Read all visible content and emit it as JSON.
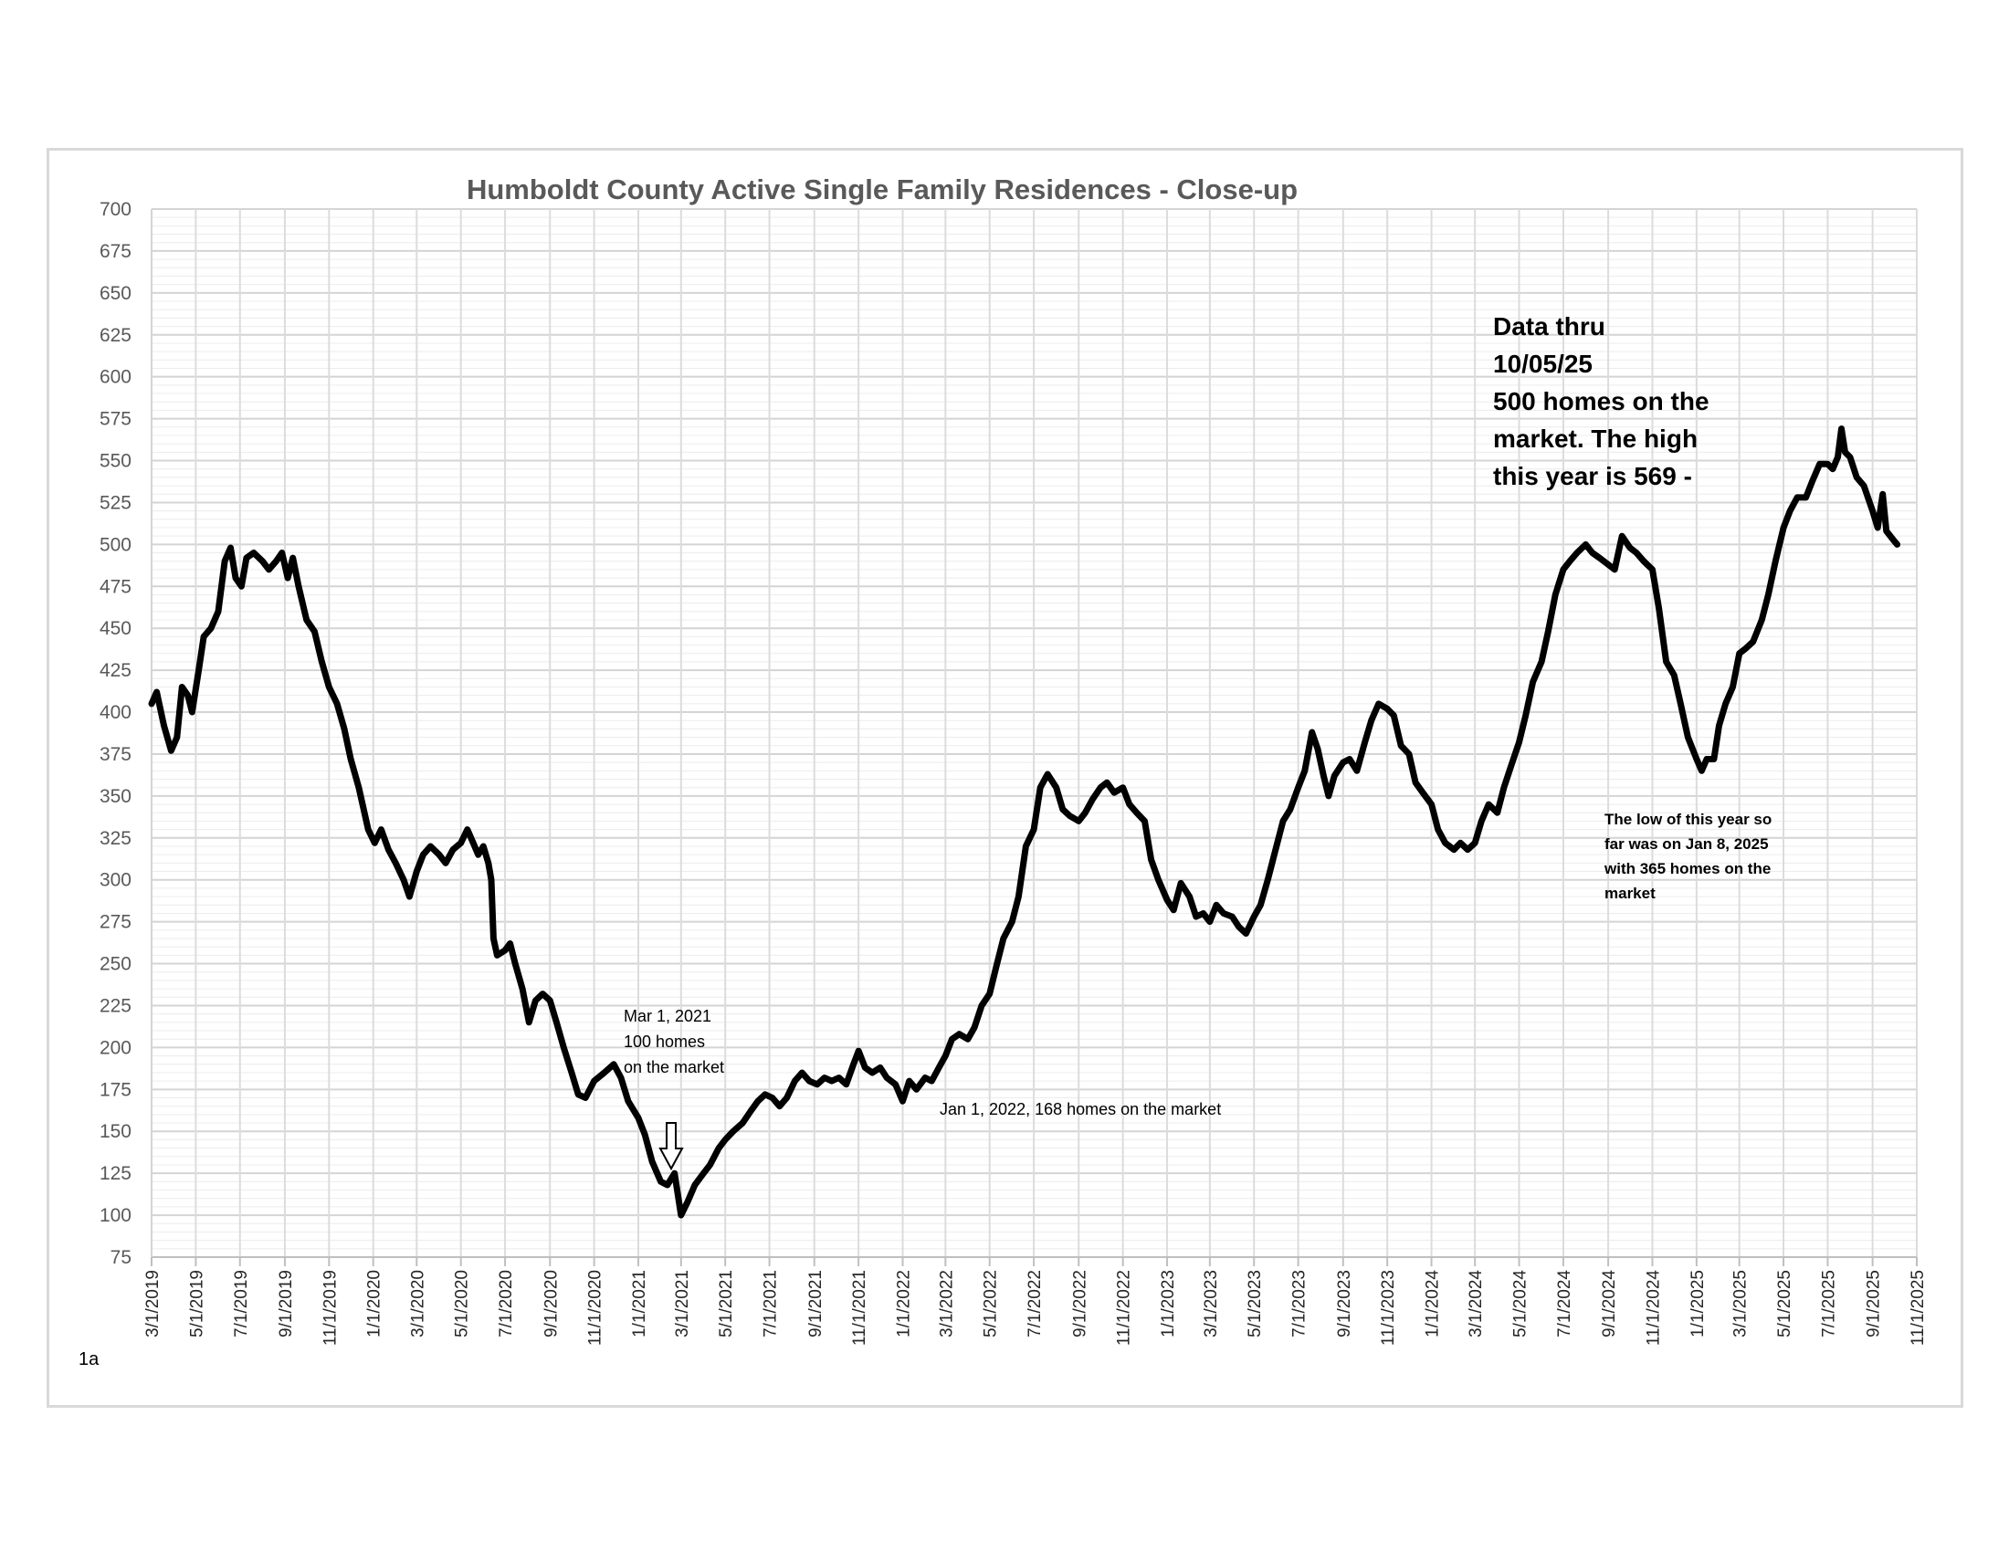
{
  "page_label": "1a",
  "chart_data": {
    "type": "line",
    "title": "Humboldt County Active Single Family Residences - Close-up",
    "xlabel": "",
    "ylabel": "",
    "ylim": [
      75,
      700
    ],
    "yticks": [
      75,
      100,
      125,
      150,
      175,
      200,
      225,
      250,
      275,
      300,
      325,
      350,
      375,
      400,
      425,
      450,
      475,
      500,
      525,
      550,
      575,
      600,
      625,
      650,
      675,
      700
    ],
    "xlim": [
      "3/1/2019",
      "11/1/2025"
    ],
    "xticks": [
      "3/1/2019",
      "5/1/2019",
      "7/1/2019",
      "9/1/2019",
      "11/1/2019",
      "1/1/2020",
      "3/1/2020",
      "5/1/2020",
      "7/1/2020",
      "9/1/2020",
      "11/1/2020",
      "1/1/2021",
      "3/1/2021",
      "5/1/2021",
      "7/1/2021",
      "9/1/2021",
      "11/1/2021",
      "1/1/2022",
      "3/1/2022",
      "5/1/2022",
      "7/1/2022",
      "9/1/2022",
      "11/1/2022",
      "1/1/2023",
      "3/1/2023",
      "5/1/2023",
      "7/1/2023",
      "9/1/2023",
      "11/1/2023",
      "1/1/2024",
      "3/1/2024",
      "5/1/2024",
      "7/1/2024",
      "9/1/2024",
      "11/1/2024",
      "1/1/2025",
      "3/1/2025",
      "5/1/2025",
      "7/1/2025",
      "9/1/2025",
      "11/1/2025"
    ],
    "grid": true,
    "series": [
      {
        "color": "#000000",
        "points": [
          [
            "2019-03-01",
            405
          ],
          [
            "2019-03-08",
            412
          ],
          [
            "2019-03-18",
            392
          ],
          [
            "2019-03-28",
            377
          ],
          [
            "2019-04-05",
            385
          ],
          [
            "2019-04-12",
            415
          ],
          [
            "2019-04-20",
            410
          ],
          [
            "2019-04-26",
            400
          ],
          [
            "2019-05-05",
            425
          ],
          [
            "2019-05-12",
            445
          ],
          [
            "2019-05-22",
            450
          ],
          [
            "2019-06-01",
            460
          ],
          [
            "2019-06-10",
            490
          ],
          [
            "2019-06-18",
            498
          ],
          [
            "2019-06-25",
            480
          ],
          [
            "2019-07-03",
            475
          ],
          [
            "2019-07-10",
            492
          ],
          [
            "2019-07-20",
            495
          ],
          [
            "2019-08-01",
            490
          ],
          [
            "2019-08-10",
            485
          ],
          [
            "2019-08-20",
            490
          ],
          [
            "2019-08-28",
            495
          ],
          [
            "2019-09-05",
            480
          ],
          [
            "2019-09-12",
            492
          ],
          [
            "2019-09-20",
            475
          ],
          [
            "2019-10-01",
            455
          ],
          [
            "2019-10-12",
            448
          ],
          [
            "2019-10-22",
            430
          ],
          [
            "2019-11-01",
            415
          ],
          [
            "2019-11-12",
            405
          ],
          [
            "2019-11-22",
            390
          ],
          [
            "2019-12-01",
            372
          ],
          [
            "2019-12-12",
            355
          ],
          [
            "2019-12-25",
            330
          ],
          [
            "2020-01-03",
            322
          ],
          [
            "2020-01-12",
            330
          ],
          [
            "2020-01-22",
            318
          ],
          [
            "2020-02-01",
            310
          ],
          [
            "2020-02-12",
            300
          ],
          [
            "2020-02-20",
            290
          ],
          [
            "2020-03-01",
            305
          ],
          [
            "2020-03-10",
            315
          ],
          [
            "2020-03-20",
            320
          ],
          [
            "2020-04-01",
            315
          ],
          [
            "2020-04-10",
            310
          ],
          [
            "2020-04-20",
            318
          ],
          [
            "2020-05-01",
            322
          ],
          [
            "2020-05-10",
            330
          ],
          [
            "2020-05-18",
            322
          ],
          [
            "2020-05-25",
            315
          ],
          [
            "2020-06-01",
            320
          ],
          [
            "2020-06-08",
            310
          ],
          [
            "2020-06-12",
            300
          ],
          [
            "2020-06-15",
            265
          ],
          [
            "2020-06-20",
            255
          ],
          [
            "2020-07-01",
            258
          ],
          [
            "2020-07-08",
            262
          ],
          [
            "2020-07-15",
            250
          ],
          [
            "2020-07-25",
            235
          ],
          [
            "2020-08-03",
            215
          ],
          [
            "2020-08-12",
            228
          ],
          [
            "2020-08-22",
            232
          ],
          [
            "2020-09-01",
            228
          ],
          [
            "2020-09-10",
            215
          ],
          [
            "2020-09-20",
            200
          ],
          [
            "2020-10-01",
            185
          ],
          [
            "2020-10-10",
            172
          ],
          [
            "2020-10-20",
            170
          ],
          [
            "2020-11-01",
            180
          ],
          [
            "2020-11-15",
            185
          ],
          [
            "2020-11-28",
            190
          ],
          [
            "2020-12-08",
            182
          ],
          [
            "2020-12-18",
            168
          ],
          [
            "2021-01-01",
            158
          ],
          [
            "2021-01-10",
            148
          ],
          [
            "2021-01-20",
            132
          ],
          [
            "2021-02-01",
            120
          ],
          [
            "2021-02-10",
            118
          ],
          [
            "2021-02-20",
            125
          ],
          [
            "2021-03-01",
            100
          ],
          [
            "2021-03-10",
            108
          ],
          [
            "2021-03-20",
            118
          ],
          [
            "2021-04-01",
            125
          ],
          [
            "2021-04-10",
            130
          ],
          [
            "2021-04-22",
            140
          ],
          [
            "2021-05-01",
            145
          ],
          [
            "2021-05-12",
            150
          ],
          [
            "2021-05-25",
            155
          ],
          [
            "2021-06-05",
            162
          ],
          [
            "2021-06-15",
            168
          ],
          [
            "2021-06-25",
            172
          ],
          [
            "2021-07-05",
            170
          ],
          [
            "2021-07-15",
            165
          ],
          [
            "2021-07-25",
            170
          ],
          [
            "2021-08-05",
            180
          ],
          [
            "2021-08-15",
            185
          ],
          [
            "2021-08-25",
            180
          ],
          [
            "2021-09-05",
            178
          ],
          [
            "2021-09-15",
            182
          ],
          [
            "2021-09-25",
            180
          ],
          [
            "2021-10-05",
            182
          ],
          [
            "2021-10-15",
            178
          ],
          [
            "2021-10-25",
            190
          ],
          [
            "2021-11-01",
            198
          ],
          [
            "2021-11-10",
            188
          ],
          [
            "2021-11-20",
            185
          ],
          [
            "2021-12-01",
            188
          ],
          [
            "2021-12-10",
            182
          ],
          [
            "2021-12-22",
            178
          ],
          [
            "2022-01-01",
            168
          ],
          [
            "2022-01-10",
            180
          ],
          [
            "2022-01-20",
            175
          ],
          [
            "2022-02-01",
            182
          ],
          [
            "2022-02-10",
            180
          ],
          [
            "2022-02-20",
            188
          ],
          [
            "2022-03-01",
            195
          ],
          [
            "2022-03-10",
            205
          ],
          [
            "2022-03-20",
            208
          ],
          [
            "2022-04-01",
            205
          ],
          [
            "2022-04-10",
            212
          ],
          [
            "2022-04-20",
            225
          ],
          [
            "2022-05-01",
            232
          ],
          [
            "2022-05-10",
            248
          ],
          [
            "2022-05-20",
            265
          ],
          [
            "2022-06-01",
            275
          ],
          [
            "2022-06-10",
            290
          ],
          [
            "2022-06-20",
            320
          ],
          [
            "2022-07-01",
            330
          ],
          [
            "2022-07-10",
            355
          ],
          [
            "2022-07-20",
            363
          ],
          [
            "2022-08-01",
            355
          ],
          [
            "2022-08-10",
            342
          ],
          [
            "2022-08-20",
            338
          ],
          [
            "2022-09-01",
            335
          ],
          [
            "2022-09-10",
            340
          ],
          [
            "2022-09-20",
            348
          ],
          [
            "2022-10-01",
            355
          ],
          [
            "2022-10-10",
            358
          ],
          [
            "2022-10-20",
            352
          ],
          [
            "2022-11-01",
            355
          ],
          [
            "2022-11-10",
            345
          ],
          [
            "2022-11-20",
            340
          ],
          [
            "2022-12-01",
            335
          ],
          [
            "2022-12-10",
            312
          ],
          [
            "2022-12-20",
            300
          ],
          [
            "2023-01-01",
            288
          ],
          [
            "2023-01-10",
            282
          ],
          [
            "2023-01-20",
            298
          ],
          [
            "2023-02-01",
            290
          ],
          [
            "2023-02-10",
            278
          ],
          [
            "2023-02-20",
            280
          ],
          [
            "2023-03-01",
            275
          ],
          [
            "2023-03-10",
            285
          ],
          [
            "2023-03-20",
            280
          ],
          [
            "2023-04-01",
            278
          ],
          [
            "2023-04-10",
            272
          ],
          [
            "2023-04-20",
            268
          ],
          [
            "2023-05-01",
            278
          ],
          [
            "2023-05-10",
            285
          ],
          [
            "2023-05-20",
            300
          ],
          [
            "2023-06-01",
            320
          ],
          [
            "2023-06-10",
            335
          ],
          [
            "2023-06-20",
            342
          ],
          [
            "2023-07-01",
            355
          ],
          [
            "2023-07-10",
            365
          ],
          [
            "2023-07-20",
            388
          ],
          [
            "2023-07-28",
            378
          ],
          [
            "2023-08-05",
            362
          ],
          [
            "2023-08-12",
            350
          ],
          [
            "2023-08-20",
            362
          ],
          [
            "2023-09-01",
            370
          ],
          [
            "2023-09-10",
            372
          ],
          [
            "2023-09-20",
            365
          ],
          [
            "2023-10-01",
            382
          ],
          [
            "2023-10-10",
            395
          ],
          [
            "2023-10-20",
            405
          ],
          [
            "2023-11-01",
            402
          ],
          [
            "2023-11-10",
            398
          ],
          [
            "2023-11-20",
            380
          ],
          [
            "2023-12-01",
            375
          ],
          [
            "2023-12-10",
            358
          ],
          [
            "2023-12-20",
            352
          ],
          [
            "2024-01-01",
            345
          ],
          [
            "2024-01-10",
            330
          ],
          [
            "2024-01-20",
            322
          ],
          [
            "2024-02-01",
            318
          ],
          [
            "2024-02-10",
            322
          ],
          [
            "2024-02-20",
            318
          ],
          [
            "2024-03-01",
            322
          ],
          [
            "2024-03-10",
            335
          ],
          [
            "2024-03-20",
            345
          ],
          [
            "2024-04-01",
            340
          ],
          [
            "2024-04-10",
            355
          ],
          [
            "2024-04-20",
            368
          ],
          [
            "2024-05-01",
            382
          ],
          [
            "2024-05-10",
            398
          ],
          [
            "2024-05-20",
            418
          ],
          [
            "2024-06-01",
            430
          ],
          [
            "2024-06-10",
            448
          ],
          [
            "2024-06-20",
            470
          ],
          [
            "2024-07-01",
            485
          ],
          [
            "2024-07-10",
            490
          ],
          [
            "2024-07-20",
            495
          ],
          [
            "2024-08-01",
            500
          ],
          [
            "2024-08-10",
            495
          ],
          [
            "2024-08-20",
            492
          ],
          [
            "2024-09-01",
            488
          ],
          [
            "2024-09-10",
            485
          ],
          [
            "2024-09-20",
            505
          ],
          [
            "2024-10-01",
            498
          ],
          [
            "2024-10-10",
            495
          ],
          [
            "2024-10-20",
            490
          ],
          [
            "2024-11-01",
            485
          ],
          [
            "2024-11-10",
            462
          ],
          [
            "2024-11-20",
            430
          ],
          [
            "2024-12-01",
            422
          ],
          [
            "2024-12-10",
            405
          ],
          [
            "2024-12-20",
            385
          ],
          [
            "2025-01-01",
            372
          ],
          [
            "2025-01-08",
            365
          ],
          [
            "2025-01-15",
            372
          ],
          [
            "2025-01-25",
            372
          ],
          [
            "2025-02-01",
            392
          ],
          [
            "2025-02-10",
            405
          ],
          [
            "2025-02-20",
            415
          ],
          [
            "2025-03-01",
            435
          ],
          [
            "2025-03-10",
            438
          ],
          [
            "2025-03-20",
            442
          ],
          [
            "2025-04-01",
            455
          ],
          [
            "2025-04-10",
            470
          ],
          [
            "2025-04-20",
            490
          ],
          [
            "2025-05-01",
            510
          ],
          [
            "2025-05-10",
            520
          ],
          [
            "2025-05-20",
            528
          ],
          [
            "2025-06-01",
            528
          ],
          [
            "2025-06-10",
            538
          ],
          [
            "2025-06-20",
            548
          ],
          [
            "2025-07-01",
            548
          ],
          [
            "2025-07-08",
            545
          ],
          [
            "2025-07-15",
            552
          ],
          [
            "2025-07-20",
            569
          ],
          [
            "2025-07-25",
            555
          ],
          [
            "2025-08-01",
            552
          ],
          [
            "2025-08-10",
            540
          ],
          [
            "2025-08-20",
            535
          ],
          [
            "2025-09-01",
            520
          ],
          [
            "2025-09-08",
            510
          ],
          [
            "2025-09-15",
            530
          ],
          [
            "2025-09-20",
            508
          ],
          [
            "2025-10-01",
            502
          ],
          [
            "2025-10-05",
            500
          ]
        ]
      }
    ],
    "annotations": [
      {
        "id": "data_thru",
        "lines": [
          "Data thru",
          "10/05/25",
          "500 homes on the",
          "market. The high",
          "this year is 569 -"
        ]
      },
      {
        "id": "low_2025",
        "lines": [
          "The low of this year so",
          "far was on Jan 8, 2025",
          "with 365 homes on the",
          "market"
        ]
      },
      {
        "id": "mar_2021",
        "lines": [
          "Mar 1, 2021",
          "100 homes",
          "on the market"
        ]
      },
      {
        "id": "jan_2022",
        "lines": [
          "Jan 1, 2022, 168 homes on the market"
        ]
      }
    ]
  }
}
